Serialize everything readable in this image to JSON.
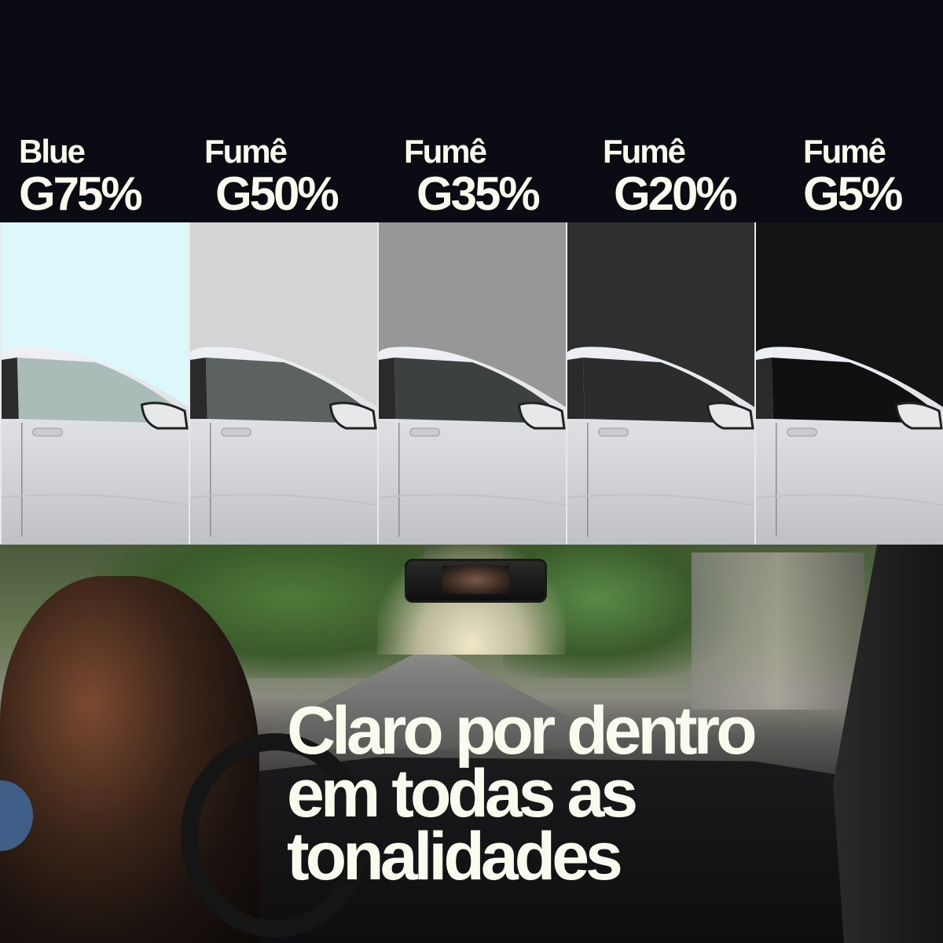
{
  "tints": [
    {
      "line1": "Blue",
      "line2": "G75%",
      "bg": "#dcf8fb",
      "glass": "#a9bcb8"
    },
    {
      "line1": "Fumê",
      "line2": "G50%",
      "bg": "#d4d4d4",
      "glass": "#5c625f"
    },
    {
      "line1": "Fumê",
      "line2": "G35%",
      "bg": "#979797",
      "glass": "#3c403e"
    },
    {
      "line1": "Fumê",
      "line2": "G20%",
      "bg": "#2f2f2f",
      "glass": "#2a2d2c"
    },
    {
      "line1": "Fumê",
      "line2": "G5%",
      "bg": "#141414",
      "glass": "#0f1010"
    }
  ],
  "headline": {
    "line1": "Claro por dentro",
    "line2": "em todas as",
    "line3": "tonalidades"
  },
  "colors": {
    "background": "#0b0b14",
    "text": "#fbfaee",
    "accent_dot": "#3f5f88"
  }
}
